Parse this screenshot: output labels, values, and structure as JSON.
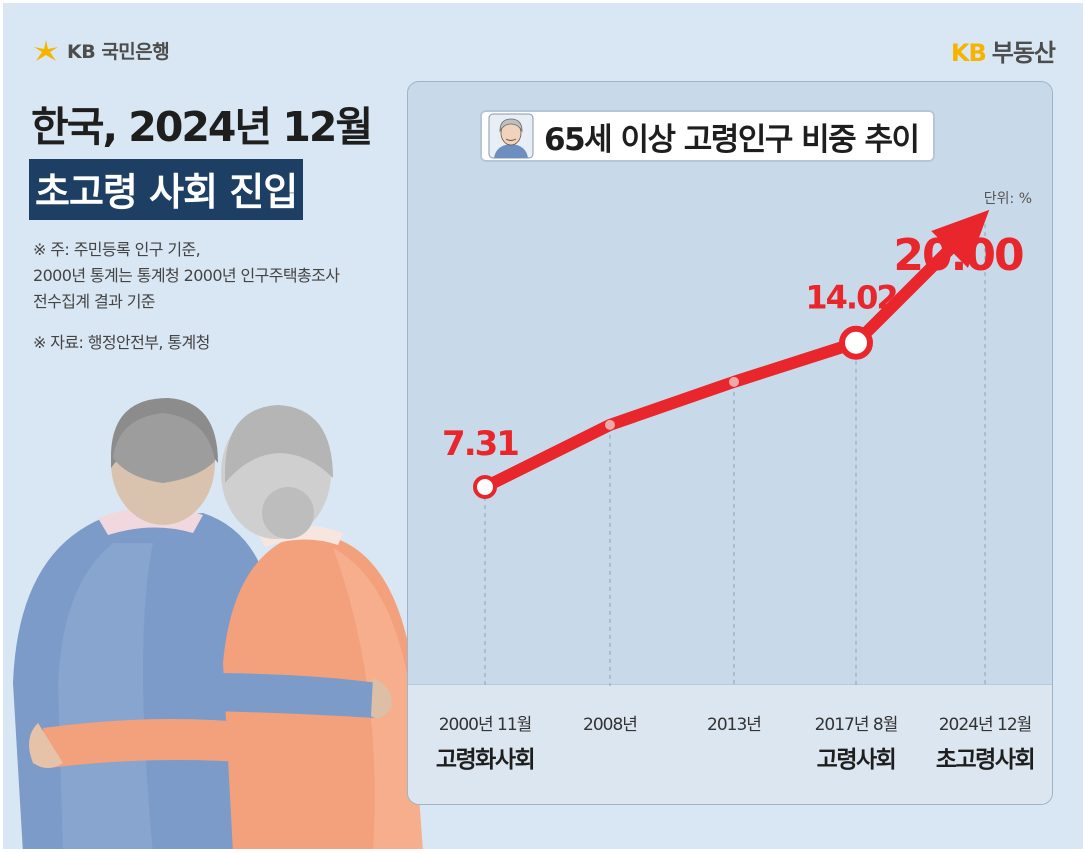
{
  "header": {
    "bank_logo_text": "KB 국민은행",
    "realestate_logo_kb": "KB",
    "realestate_logo_text": "부동산"
  },
  "headline": {
    "line1": "한국, 2024년 12월",
    "line2": "초고령 사회 진입"
  },
  "notes": {
    "note_line1": "※ 주: 주민등록 인구 기준,",
    "note_line2": "2000년 통계는 통계청 2000년 인구주택총조사",
    "note_line3": "전수집계 결과 기준",
    "source": "※ 자료: 행정안전부, 통계청"
  },
  "chart_data": {
    "type": "line",
    "title": "65세 이상 고령인구 비중 추이",
    "unit": "단위: %",
    "categories": [
      "2000년 11월",
      "2008년",
      "2013년",
      "2017년 8월",
      "2024년 12월"
    ],
    "sub_labels": [
      "고령화사회",
      "",
      "",
      "고령사회",
      "초고령사회"
    ],
    "series": [
      {
        "values": [
          7.31,
          10.2,
          12.2,
          14.02,
          20.0
        ]
      }
    ],
    "data_labels": [
      "7.31",
      "",
      "",
      "14.02",
      "20.00"
    ],
    "highlighted_points": [
      0,
      3
    ],
    "ylim": [
      0,
      22
    ],
    "grid": false,
    "line_color": "#e8262b",
    "label_color": "#e8262b"
  },
  "colors": {
    "background": "#d9e6f3",
    "headline_band": "#1c3f63",
    "accent_yellow": "#f5b400"
  }
}
